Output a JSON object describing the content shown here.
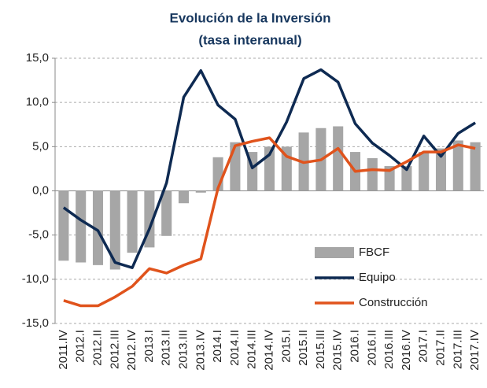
{
  "chart_data": {
    "type": "bar",
    "title": "Evolución  de la Inversión",
    "subtitle": "(tasa interanual)",
    "categories": [
      "2011.IV",
      "2012.I",
      "2012.II",
      "2012.III",
      "2012.IV",
      "2013.I",
      "2013.II",
      "2013.III",
      "2013.IV",
      "2014.I",
      "2014.II",
      "2014.III",
      "2014.IV",
      "2015.I",
      "2015.II",
      "2015.III",
      "2015.IV",
      "2016.I",
      "2016.II",
      "2016.III",
      "2016.IV",
      "2017.I",
      "2017.II",
      "2017.III",
      "2017.IV"
    ],
    "series": [
      {
        "name": "FBCF",
        "type": "bar",
        "color": "#a6a6a6",
        "values": [
          -7.9,
          -8.1,
          -8.4,
          -8.9,
          -7.0,
          -6.4,
          -5.1,
          -1.4,
          -0.2,
          3.8,
          5.5,
          4.4,
          5.0,
          5.0,
          6.6,
          7.1,
          7.3,
          4.4,
          3.7,
          2.8,
          2.8,
          4.4,
          4.8,
          5.7,
          5.5
        ]
      },
      {
        "name": "Equipo",
        "type": "line",
        "color": "#0e2a52",
        "values": [
          -1.9,
          -3.3,
          -4.5,
          -8.1,
          -8.7,
          -4.3,
          0.9,
          10.6,
          13.6,
          9.7,
          8.1,
          2.6,
          4.1,
          7.8,
          12.7,
          13.7,
          12.3,
          7.6,
          5.4,
          4.0,
          2.4,
          6.2,
          3.9,
          6.5,
          7.7
        ]
      },
      {
        "name": "Construcción",
        "type": "line",
        "color": "#e0531c",
        "values": [
          -12.4,
          -13.0,
          -13.0,
          -12.0,
          -10.8,
          -8.8,
          -9.3,
          -8.4,
          -7.7,
          0.3,
          5.1,
          5.6,
          6.0,
          3.9,
          3.2,
          3.5,
          4.8,
          2.2,
          2.4,
          2.3,
          3.3,
          4.4,
          4.4,
          5.2,
          4.8
        ]
      }
    ],
    "ylim": [
      -15,
      15
    ],
    "yticks": [
      {
        "value": 15,
        "label": "15,0"
      },
      {
        "value": 10,
        "label": "10,0"
      },
      {
        "value": 5,
        "label": "5,0"
      },
      {
        "value": 0,
        "label": "0,0"
      },
      {
        "value": -5,
        "label": "-5,0"
      },
      {
        "value": -10,
        "label": "-10,0"
      },
      {
        "value": -15,
        "label": "-15,0"
      }
    ],
    "grid": true,
    "legend": "lower right"
  }
}
